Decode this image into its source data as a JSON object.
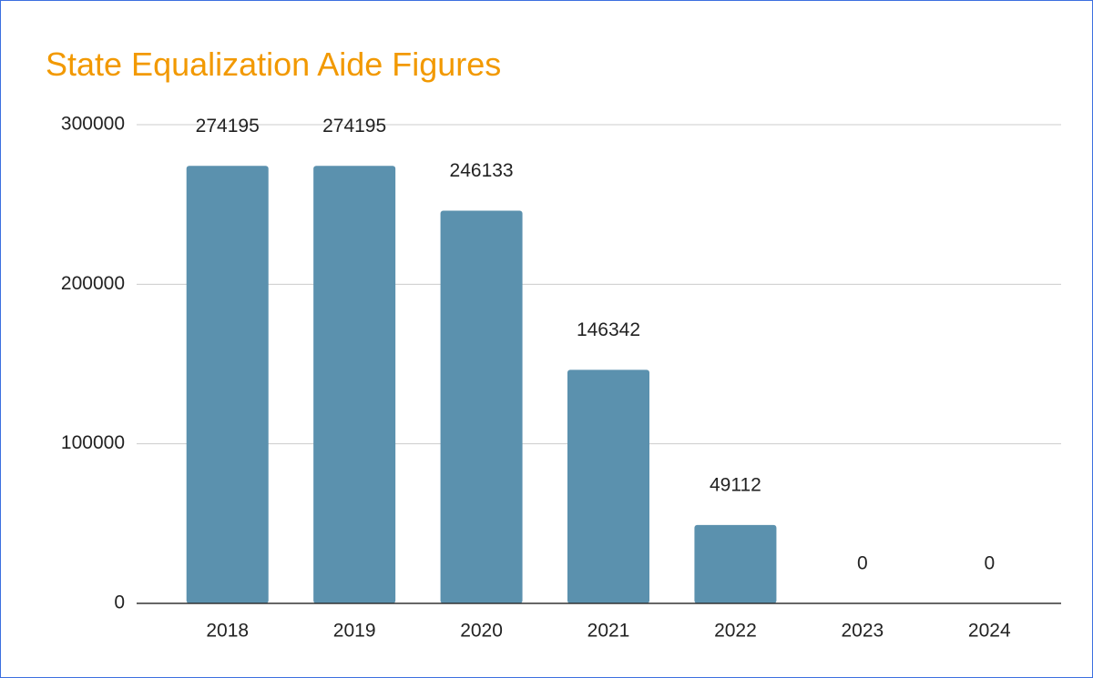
{
  "chart_data": {
    "type": "bar",
    "title": "State Equalization Aide Figures",
    "categories": [
      "2018",
      "2019",
      "2020",
      "2021",
      "2022",
      "2023",
      "2024"
    ],
    "values": [
      274195,
      274195,
      246133,
      146342,
      49112,
      0,
      0
    ],
    "color": "#5b91ae",
    "ylim": [
      0,
      300000
    ],
    "yticks": [
      0,
      100000,
      200000,
      300000
    ],
    "grid": true
  }
}
